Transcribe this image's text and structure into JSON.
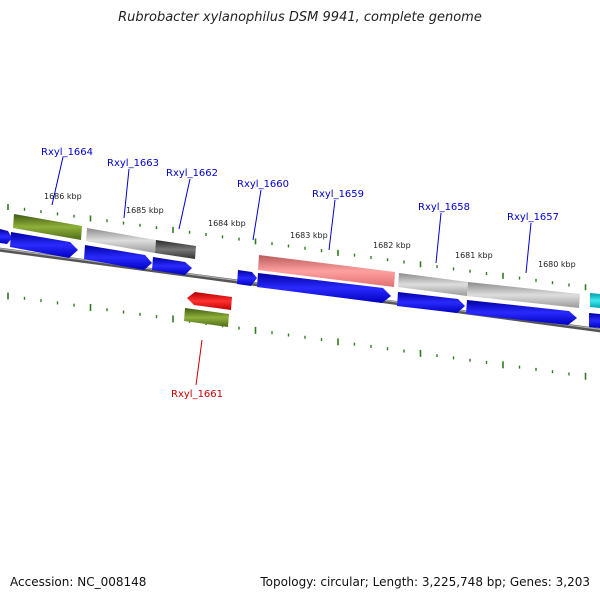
{
  "title": "Rubrobacter xylanophilus DSM 9941, complete genome",
  "accession_text": "Accession: NC_008148",
  "summary_text": "Topology: circular; Length: 3,225,748 bp; Genes: 3,203",
  "colors": {
    "backbone": "#7a7a7a",
    "cds_forward": "#0000ee",
    "tick": "#2e7d1e",
    "label_default": "#0000cc",
    "label_highlight": "#cc0000",
    "green_feature": "#6b8e23",
    "grey_feature": "#bdbdbd",
    "dark_feature": "#555555",
    "pink_feature": "#f08080",
    "red_feature": "#ff0000",
    "cyan_feature": "#00c8d2"
  },
  "scale_labels": [
    "1686 kbp",
    "1685 kbp",
    "1684 kbp",
    "1683 kbp",
    "1682 kbp",
    "1681 kbp",
    "1680 kbp"
  ],
  "gene_labels": [
    {
      "id": "Rxyl_1664",
      "highlight": false
    },
    {
      "id": "Rxyl_1663",
      "highlight": false
    },
    {
      "id": "Rxyl_1662",
      "highlight": false
    },
    {
      "id": "Rxyl_1660",
      "highlight": false
    },
    {
      "id": "Rxyl_1659",
      "highlight": false
    },
    {
      "id": "Rxyl_1658",
      "highlight": false
    },
    {
      "id": "Rxyl_1657",
      "highlight": false
    },
    {
      "id": "Rxyl_1661",
      "highlight": true
    }
  ]
}
